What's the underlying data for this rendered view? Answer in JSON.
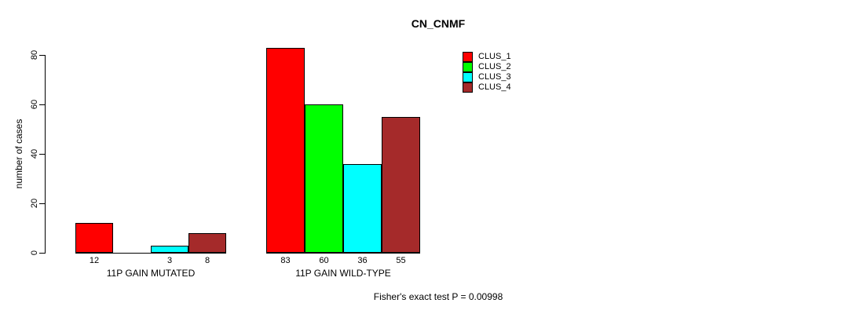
{
  "chart_data": {
    "type": "bar",
    "title": "CN_CNMF",
    "ylabel": "number of cases",
    "xlabel": "",
    "ylim": [
      0,
      80
    ],
    "yticks": [
      0,
      20,
      40,
      60,
      80
    ],
    "grid": false,
    "legend_position": "top-right",
    "categories": [
      "11P GAIN MUTATED",
      "11P GAIN WILD-TYPE"
    ],
    "series": [
      {
        "name": "CLUS_1",
        "color": "#ff0000",
        "values": [
          12,
          83
        ]
      },
      {
        "name": "CLUS_2",
        "color": "#00ff00",
        "values": [
          0,
          60
        ]
      },
      {
        "name": "CLUS_3",
        "color": "#00ffff",
        "values": [
          3,
          36
        ]
      },
      {
        "name": "CLUS_4",
        "color": "#a52a2a",
        "values": [
          8,
          55
        ]
      }
    ],
    "bar_value_labels": {
      "shown": true,
      "zero_values_hidden": true,
      "visible_labels": [
        "12",
        "3",
        "8",
        "83",
        "60",
        "36",
        "55"
      ]
    },
    "annotation": "Fisher's exact test P = 0.00998"
  }
}
